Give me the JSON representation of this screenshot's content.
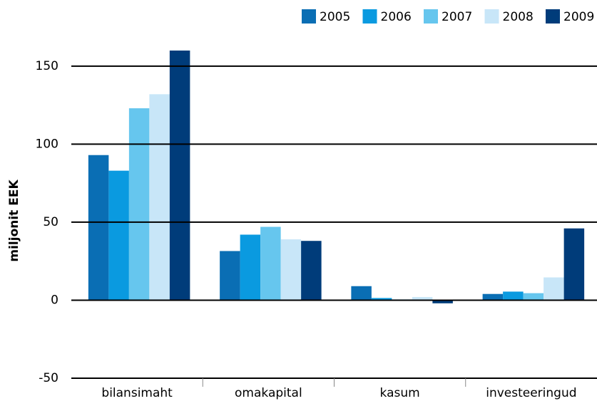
{
  "chart_data": {
    "type": "bar",
    "y_label": "miljonit EEK",
    "categories": [
      "bilansimaht",
      "omakapital",
      "kasum",
      "investeeringud"
    ],
    "series": [
      {
        "name": "2005",
        "color": "#0a6eb4",
        "values": [
          93,
          31.5,
          9,
          4
        ]
      },
      {
        "name": "2006",
        "color": "#0a9ae0",
        "values": [
          83,
          42,
          1.4,
          5.5
        ]
      },
      {
        "name": "2007",
        "color": "#66c6ee",
        "values": [
          123,
          47,
          0.5,
          4.5
        ]
      },
      {
        "name": "2008",
        "color": "#c8e6f8",
        "values": [
          132,
          39,
          2,
          14.6
        ]
      },
      {
        "name": "2009",
        "color": "#003c7a",
        "values": [
          160,
          38,
          -2,
          46
        ]
      }
    ],
    "ylim": [
      -50,
      165
    ],
    "yticks": [
      -50,
      0,
      50,
      100,
      150
    ],
    "grid": true,
    "legend": "top-right"
  }
}
